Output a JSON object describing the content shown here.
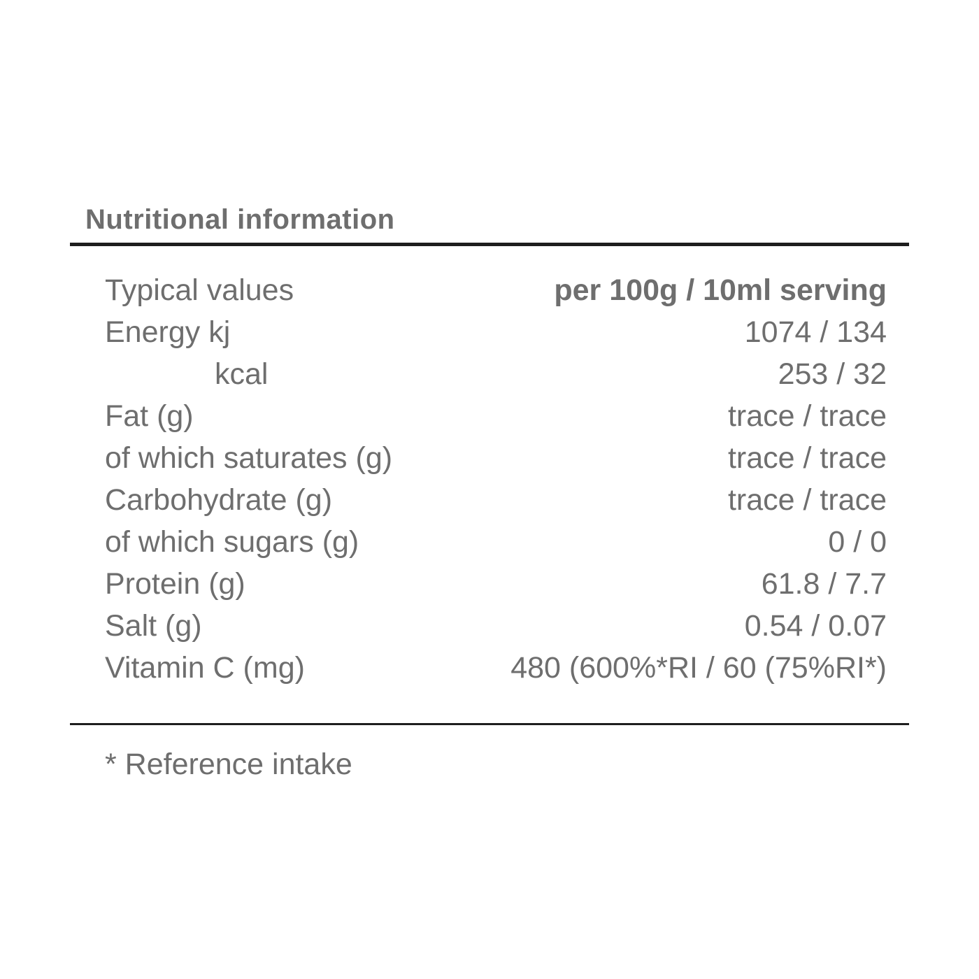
{
  "title": "Nutritional information",
  "table": {
    "header": {
      "label": "Typical values",
      "value": "per 100g / 10ml serving"
    },
    "rows": [
      {
        "label": "Energy kj",
        "value": "1074 / 134"
      },
      {
        "label": "kcal",
        "value": "253 / 32"
      },
      {
        "label": "Fat (g)",
        "value": "trace / trace"
      },
      {
        "label": "of which saturates (g)",
        "value": "trace / trace"
      },
      {
        "label": "Carbohydrate (g)",
        "value": "trace / trace"
      },
      {
        "label": "of which sugars (g)",
        "value": "0 / 0"
      },
      {
        "label": "Protein (g)",
        "value": "61.8 / 7.7"
      },
      {
        "label": "Salt (g)",
        "value": "0.54 / 0.07"
      },
      {
        "label": "Vitamin C (mg)",
        "value": "480 (600%*RI / 60 (75%RI*)"
      }
    ]
  },
  "footnote": "* Reference intake",
  "colors": {
    "text": "#6e6e6e",
    "rule": "#1e1e1e"
  }
}
